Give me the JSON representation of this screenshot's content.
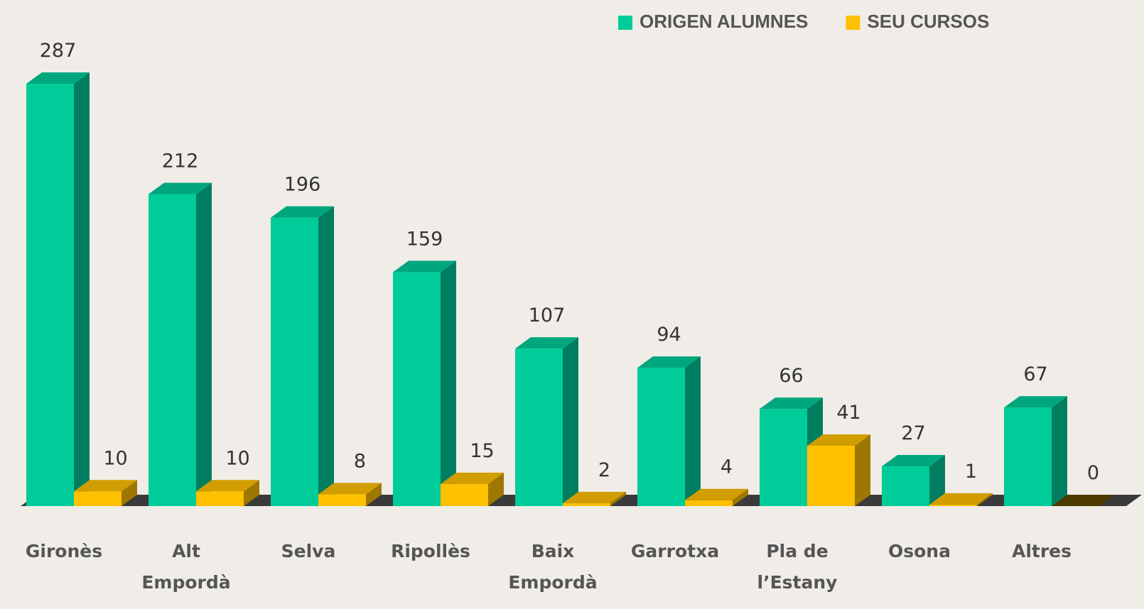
{
  "chart_data": {
    "type": "bar3d",
    "categories": [
      "Gironès",
      "Alt\nEmpordà",
      "Selva",
      "Ripollès",
      "Baix\nEmpordà",
      "Garrotxa",
      "Pla de\nl’Estany",
      "Osona",
      "Altres"
    ],
    "series": [
      {
        "name": "ORIGEN ALUMNES",
        "color": "#00cc99",
        "values": [
          287,
          212,
          196,
          159,
          107,
          94,
          66,
          27,
          67
        ]
      },
      {
        "name": "SEU CURSOS",
        "color": "#ffc000",
        "values": [
          10,
          10,
          8,
          15,
          2,
          4,
          41,
          1,
          0
        ]
      }
    ],
    "legend": "top-right"
  }
}
